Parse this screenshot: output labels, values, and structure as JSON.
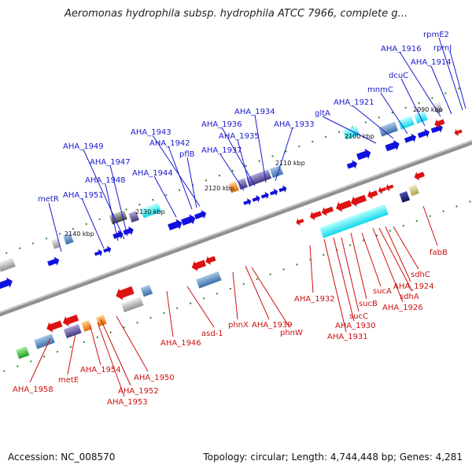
{
  "title": "Aeromonas hydrophila subsp. hydrophila ATCC 7966, complete g...",
  "footer": {
    "accession": "Accession: NC_008570",
    "summary": "Topology: circular; Length: 4,744,448 bp; Genes: 4,281"
  },
  "ticks": [
    "2090 kbp",
    "2100 kbp",
    "2110 kbp",
    "2120 kbp",
    "2130 kbp",
    "2140 kbp"
  ],
  "top_labels": [
    "rpmE2",
    "rpmJ",
    "AHA_1916",
    "AHA_1914",
    "dcuC",
    "mnmC",
    "AHA_1921",
    "gltA",
    "AHA_1934",
    "AHA_1933",
    "AHA_1936",
    "AHA_1935",
    "AHA_1937",
    "AHA_1943",
    "AHA_1942",
    "pflB",
    "AHA_1944",
    "AHA_1949",
    "AHA_1947",
    "AHA_1948",
    "AHA_1951",
    "metR"
  ],
  "bottom_labels": [
    "fabB",
    "sdhC",
    "AHA_1924",
    "sdhA",
    "AHA_1926",
    "sucA",
    "sucB",
    "sucC",
    "AHA_1930",
    "AHA_1931",
    "AHA_1932",
    "phnW",
    "AHA_1939",
    "phnX",
    "asd-1",
    "AHA_1946",
    "AHA_1950",
    "AHA_1954",
    "AHA_1952",
    "AHA_1953",
    "metE",
    "AHA_1958"
  ],
  "colors": {
    "forward": "#1010dd",
    "reverse": "#dd1111",
    "axis": "#888888",
    "tick": "#2a8a2a"
  }
}
